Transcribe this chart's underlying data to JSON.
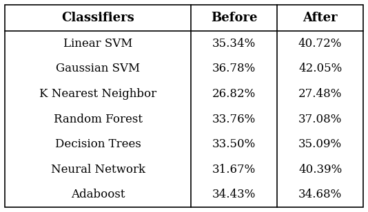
{
  "headers": [
    "Classifiers",
    "Before",
    "After"
  ],
  "rows": [
    [
      "Linear SVM",
      "35.34%",
      "40.72%"
    ],
    [
      "Gaussian SVM",
      "36.78%",
      "42.05%"
    ],
    [
      "K Nearest Neighbor",
      "26.82%",
      "27.48%"
    ],
    [
      "Random Forest",
      "33.76%",
      "37.08%"
    ],
    [
      "Decision Trees",
      "33.50%",
      "35.09%"
    ],
    [
      "Neural Network",
      "31.67%",
      "40.39%"
    ],
    [
      "Adaboost",
      "34.43%",
      "34.68%"
    ]
  ],
  "header_fontsize": 13,
  "cell_fontsize": 12,
  "header_fontweight": "bold",
  "cell_fontweight": "normal",
  "bg_color": "#ffffff",
  "text_color": "#000000",
  "line_color": "#000000",
  "fig_width": 5.34,
  "fig_height": 3.08,
  "dpi": 100
}
